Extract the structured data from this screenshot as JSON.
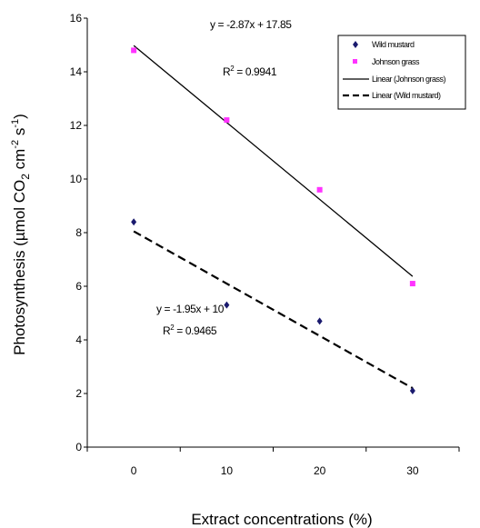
{
  "chart_data": {
    "type": "scatter",
    "xlabel": "Extract concentrations (%)",
    "ylabel": {
      "prefix": "Photosynthesis (µmol CO",
      "sub": "2",
      "mid": " cm",
      "sup1": "-2",
      "mid2": " s",
      "sup2": "-1",
      "suffix": ")"
    },
    "xlim": [
      -5,
      35
    ],
    "ylim": [
      0,
      16
    ],
    "x_ticks": [
      0,
      10,
      20,
      30
    ],
    "y_ticks": [
      0,
      2,
      4,
      6,
      8,
      10,
      12,
      14,
      16
    ],
    "grid": false,
    "legend_position": "top-right",
    "series": [
      {
        "name": "Wild mustard",
        "marker": "diamond",
        "color": "#1a1a6e",
        "x": [
          0,
          10,
          20,
          30
        ],
        "y": [
          8.4,
          5.3,
          4.7,
          2.1
        ]
      },
      {
        "name": "Johnson grass",
        "marker": "square",
        "color": "#ff33ff",
        "x": [
          0,
          10,
          20,
          30
        ],
        "y": [
          14.8,
          12.2,
          9.6,
          6.1
        ]
      }
    ],
    "trendlines": [
      {
        "name": "Linear (Johnson grass)",
        "style": "solid",
        "slope": -2.87,
        "intercept": 17.85,
        "x_range": [
          0,
          30
        ],
        "equation": "y = -2.87x + 17.85",
        "r2_prefix": "R",
        "r2_sup": "2",
        "r2_value": " = 0.9941"
      },
      {
        "name": "Linear (Wild mustard)",
        "style": "dashed",
        "slope": -1.95,
        "intercept": 10,
        "x_range": [
          0,
          30
        ],
        "equation": "y = -1.95x + 10",
        "r2_prefix": "R",
        "r2_sup": "2",
        "r2_value": " = 0.9465"
      }
    ],
    "legend": [
      "Wild mustard",
      "Johnson grass",
      "Linear (Johnson grass)",
      "Linear (Wild mustard)"
    ]
  }
}
